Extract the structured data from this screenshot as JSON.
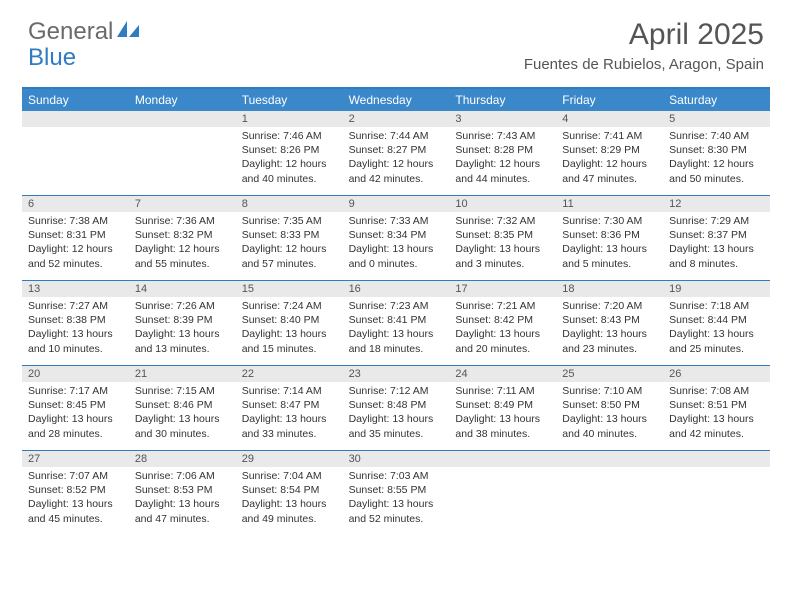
{
  "logo": {
    "text1": "General",
    "text2": "Blue"
  },
  "title": "April 2025",
  "location": "Fuentes de Rubielos, Aragon, Spain",
  "colors": {
    "brand_blue": "#3a88c9",
    "rule_blue": "#2f7cc0",
    "header_gray": "#e9e9e9",
    "text_gray": "#555",
    "body_text": "#333",
    "bg": "#ffffff"
  },
  "day_headers": [
    "Sunday",
    "Monday",
    "Tuesday",
    "Wednesday",
    "Thursday",
    "Friday",
    "Saturday"
  ],
  "weeks": [
    [
      null,
      null,
      {
        "n": "1",
        "sr": "Sunrise: 7:46 AM",
        "ss": "Sunset: 8:26 PM",
        "dl": "Daylight: 12 hours and 40 minutes."
      },
      {
        "n": "2",
        "sr": "Sunrise: 7:44 AM",
        "ss": "Sunset: 8:27 PM",
        "dl": "Daylight: 12 hours and 42 minutes."
      },
      {
        "n": "3",
        "sr": "Sunrise: 7:43 AM",
        "ss": "Sunset: 8:28 PM",
        "dl": "Daylight: 12 hours and 44 minutes."
      },
      {
        "n": "4",
        "sr": "Sunrise: 7:41 AM",
        "ss": "Sunset: 8:29 PM",
        "dl": "Daylight: 12 hours and 47 minutes."
      },
      {
        "n": "5",
        "sr": "Sunrise: 7:40 AM",
        "ss": "Sunset: 8:30 PM",
        "dl": "Daylight: 12 hours and 50 minutes."
      }
    ],
    [
      {
        "n": "6",
        "sr": "Sunrise: 7:38 AM",
        "ss": "Sunset: 8:31 PM",
        "dl": "Daylight: 12 hours and 52 minutes."
      },
      {
        "n": "7",
        "sr": "Sunrise: 7:36 AM",
        "ss": "Sunset: 8:32 PM",
        "dl": "Daylight: 12 hours and 55 minutes."
      },
      {
        "n": "8",
        "sr": "Sunrise: 7:35 AM",
        "ss": "Sunset: 8:33 PM",
        "dl": "Daylight: 12 hours and 57 minutes."
      },
      {
        "n": "9",
        "sr": "Sunrise: 7:33 AM",
        "ss": "Sunset: 8:34 PM",
        "dl": "Daylight: 13 hours and 0 minutes."
      },
      {
        "n": "10",
        "sr": "Sunrise: 7:32 AM",
        "ss": "Sunset: 8:35 PM",
        "dl": "Daylight: 13 hours and 3 minutes."
      },
      {
        "n": "11",
        "sr": "Sunrise: 7:30 AM",
        "ss": "Sunset: 8:36 PM",
        "dl": "Daylight: 13 hours and 5 minutes."
      },
      {
        "n": "12",
        "sr": "Sunrise: 7:29 AM",
        "ss": "Sunset: 8:37 PM",
        "dl": "Daylight: 13 hours and 8 minutes."
      }
    ],
    [
      {
        "n": "13",
        "sr": "Sunrise: 7:27 AM",
        "ss": "Sunset: 8:38 PM",
        "dl": "Daylight: 13 hours and 10 minutes."
      },
      {
        "n": "14",
        "sr": "Sunrise: 7:26 AM",
        "ss": "Sunset: 8:39 PM",
        "dl": "Daylight: 13 hours and 13 minutes."
      },
      {
        "n": "15",
        "sr": "Sunrise: 7:24 AM",
        "ss": "Sunset: 8:40 PM",
        "dl": "Daylight: 13 hours and 15 minutes."
      },
      {
        "n": "16",
        "sr": "Sunrise: 7:23 AM",
        "ss": "Sunset: 8:41 PM",
        "dl": "Daylight: 13 hours and 18 minutes."
      },
      {
        "n": "17",
        "sr": "Sunrise: 7:21 AM",
        "ss": "Sunset: 8:42 PM",
        "dl": "Daylight: 13 hours and 20 minutes."
      },
      {
        "n": "18",
        "sr": "Sunrise: 7:20 AM",
        "ss": "Sunset: 8:43 PM",
        "dl": "Daylight: 13 hours and 23 minutes."
      },
      {
        "n": "19",
        "sr": "Sunrise: 7:18 AM",
        "ss": "Sunset: 8:44 PM",
        "dl": "Daylight: 13 hours and 25 minutes."
      }
    ],
    [
      {
        "n": "20",
        "sr": "Sunrise: 7:17 AM",
        "ss": "Sunset: 8:45 PM",
        "dl": "Daylight: 13 hours and 28 minutes."
      },
      {
        "n": "21",
        "sr": "Sunrise: 7:15 AM",
        "ss": "Sunset: 8:46 PM",
        "dl": "Daylight: 13 hours and 30 minutes."
      },
      {
        "n": "22",
        "sr": "Sunrise: 7:14 AM",
        "ss": "Sunset: 8:47 PM",
        "dl": "Daylight: 13 hours and 33 minutes."
      },
      {
        "n": "23",
        "sr": "Sunrise: 7:12 AM",
        "ss": "Sunset: 8:48 PM",
        "dl": "Daylight: 13 hours and 35 minutes."
      },
      {
        "n": "24",
        "sr": "Sunrise: 7:11 AM",
        "ss": "Sunset: 8:49 PM",
        "dl": "Daylight: 13 hours and 38 minutes."
      },
      {
        "n": "25",
        "sr": "Sunrise: 7:10 AM",
        "ss": "Sunset: 8:50 PM",
        "dl": "Daylight: 13 hours and 40 minutes."
      },
      {
        "n": "26",
        "sr": "Sunrise: 7:08 AM",
        "ss": "Sunset: 8:51 PM",
        "dl": "Daylight: 13 hours and 42 minutes."
      }
    ],
    [
      {
        "n": "27",
        "sr": "Sunrise: 7:07 AM",
        "ss": "Sunset: 8:52 PM",
        "dl": "Daylight: 13 hours and 45 minutes."
      },
      {
        "n": "28",
        "sr": "Sunrise: 7:06 AM",
        "ss": "Sunset: 8:53 PM",
        "dl": "Daylight: 13 hours and 47 minutes."
      },
      {
        "n": "29",
        "sr": "Sunrise: 7:04 AM",
        "ss": "Sunset: 8:54 PM",
        "dl": "Daylight: 13 hours and 49 minutes."
      },
      {
        "n": "30",
        "sr": "Sunrise: 7:03 AM",
        "ss": "Sunset: 8:55 PM",
        "dl": "Daylight: 13 hours and 52 minutes."
      },
      null,
      null,
      null
    ]
  ]
}
